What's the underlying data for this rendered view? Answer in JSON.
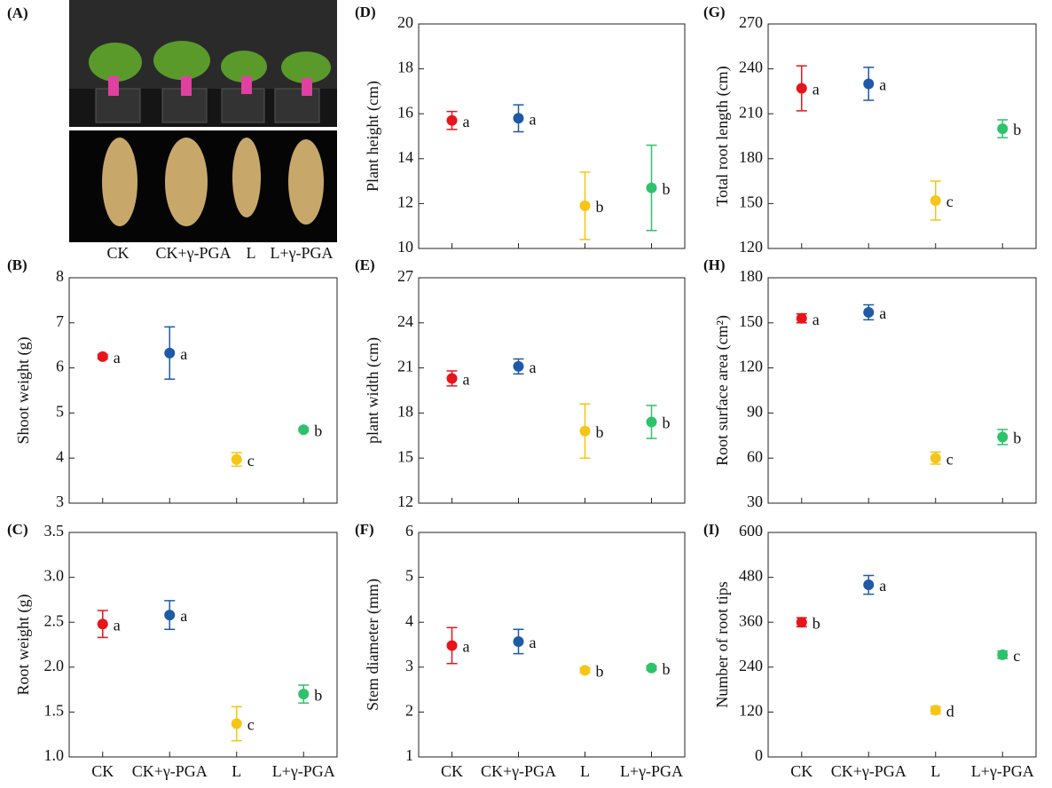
{
  "image_panel": {
    "label": "(A)",
    "labels": [
      "CK",
      "CK+γ-PGA",
      "L",
      "L+γ-PGA"
    ]
  },
  "chart_data": [
    {
      "type": "point",
      "panel": "(B)",
      "ylabel": "Shoot weight (g)",
      "categories": [
        null,
        null,
        null,
        null
      ],
      "values": [
        6.25,
        6.33,
        3.97,
        4.63
      ],
      "errors": [
        0.05,
        0.58,
        0.15,
        0.03
      ],
      "letters": [
        "a",
        "a",
        "c",
        "b"
      ],
      "colors": [
        "#e8141c",
        "#1f5aa6",
        "#f5c518",
        "#2ec26b"
      ],
      "ylim": [
        3,
        8
      ],
      "yticks": [
        3,
        4,
        5,
        6,
        7,
        8
      ]
    },
    {
      "type": "point",
      "panel": "(C)",
      "ylabel": "Root weight (g)",
      "categories": [
        "CK",
        "CK+γ-PGA",
        "L",
        "L+γ-PGA"
      ],
      "values": [
        2.48,
        2.58,
        1.37,
        1.7
      ],
      "errors": [
        0.15,
        0.16,
        0.19,
        0.1
      ],
      "letters": [
        "a",
        "a",
        "c",
        "b"
      ],
      "colors": [
        "#e8141c",
        "#1f5aa6",
        "#f5c518",
        "#2ec26b"
      ],
      "ylim": [
        1,
        3.5
      ],
      "yticks": [
        {
          "value": 1,
          "label": "1.0"
        },
        1.5,
        {
          "value": 2,
          "label": "2.0"
        },
        2.5,
        {
          "value": 3,
          "label": "3.0"
        },
        3.5
      ]
    },
    {
      "type": "point",
      "panel": "(D)",
      "ylabel": "Plant height (cm)",
      "categories": [
        null,
        null,
        null,
        null
      ],
      "values": [
        15.7,
        15.8,
        11.9,
        12.7
      ],
      "errors": [
        0.4,
        0.6,
        1.5,
        1.9
      ],
      "letters": [
        "a",
        "a",
        "b",
        "b"
      ],
      "colors": [
        "#e8141c",
        "#1f5aa6",
        "#f5c518",
        "#2ec26b"
      ],
      "ylim": [
        10,
        20
      ],
      "yticks": [
        10,
        12,
        14,
        16,
        18,
        20
      ]
    },
    {
      "type": "point",
      "panel": "(E)",
      "ylabel": "plant width (cm)",
      "categories": [
        null,
        null,
        null,
        null
      ],
      "values": [
        20.3,
        21.1,
        16.8,
        17.4
      ],
      "errors": [
        0.5,
        0.5,
        1.8,
        1.1
      ],
      "letters": [
        "a",
        "a",
        "b",
        "b"
      ],
      "colors": [
        "#e8141c",
        "#1f5aa6",
        "#f5c518",
        "#2ec26b"
      ],
      "ylim": [
        12,
        27
      ],
      "yticks": [
        12,
        15,
        18,
        21,
        24,
        27
      ]
    },
    {
      "type": "point",
      "panel": "(F)",
      "ylabel": "Stem diameter (mm)",
      "categories": [
        "CK",
        "CK+γ-PGA",
        "L",
        "L+γ-PGA"
      ],
      "values": [
        3.48,
        3.57,
        2.93,
        2.98
      ],
      "errors": [
        0.4,
        0.27,
        0.05,
        0.05
      ],
      "letters": [
        "a",
        "a",
        "b",
        "b"
      ],
      "colors": [
        "#e8141c",
        "#1f5aa6",
        "#f5c518",
        "#2ec26b"
      ],
      "ylim": [
        1,
        6
      ],
      "yticks": [
        1,
        2,
        3,
        4,
        5,
        6
      ]
    },
    {
      "type": "point",
      "panel": "(G)",
      "ylabel": "Total root length (cm)",
      "categories": [
        null,
        null,
        null,
        null
      ],
      "values": [
        227,
        230,
        152,
        200
      ],
      "errors": [
        15,
        11,
        13,
        6
      ],
      "letters": [
        "a",
        "a",
        "c",
        "b"
      ],
      "colors": [
        "#e8141c",
        "#1f5aa6",
        "#f5c518",
        "#2ec26b"
      ],
      "ylim": [
        120,
        270
      ],
      "yticks": [
        120,
        150,
        180,
        210,
        240,
        270
      ]
    },
    {
      "type": "point",
      "panel": "(H)",
      "ylabel": "Root surface area (cm²)",
      "categories": [
        null,
        null,
        null,
        null
      ],
      "values": [
        153,
        157,
        60,
        74
      ],
      "errors": [
        3,
        5,
        4,
        5
      ],
      "letters": [
        "a",
        "a",
        "c",
        "b"
      ],
      "colors": [
        "#e8141c",
        "#1f5aa6",
        "#f5c518",
        "#2ec26b"
      ],
      "ylim": [
        30,
        180
      ],
      "yticks": [
        30,
        60,
        90,
        120,
        150,
        180
      ]
    },
    {
      "type": "point",
      "panel": "(I)",
      "ylabel": "Number of root tips",
      "categories": [
        "CK",
        "CK+γ-PGA",
        "L",
        "L+γ-PGA"
      ],
      "values": [
        360,
        460,
        125,
        273
      ],
      "errors": [
        12,
        25,
        10,
        10
      ],
      "letters": [
        "b",
        "a",
        "d",
        "c"
      ],
      "colors": [
        "#e8141c",
        "#1f5aa6",
        "#f5c518",
        "#2ec26b"
      ],
      "ylim": [
        0,
        600
      ],
      "yticks": [
        0,
        120,
        240,
        360,
        480,
        600
      ]
    }
  ]
}
